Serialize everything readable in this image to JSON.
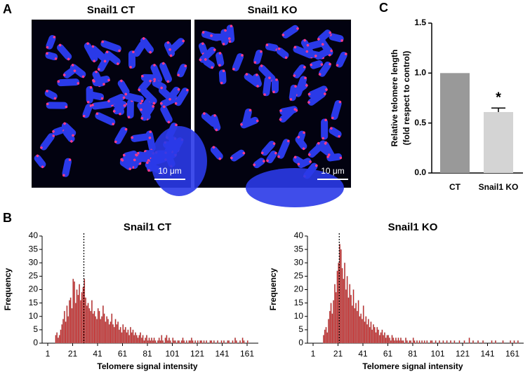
{
  "panel_labels": [
    "A",
    "B",
    "C"
  ],
  "images": [
    {
      "title": "Snail1 CT",
      "scale_bar": "10 μm"
    },
    {
      "title": "Snail1 KO",
      "scale_bar": "10 μm"
    }
  ],
  "chart_data": [
    {
      "type": "bar",
      "categories": [
        "CT",
        "Snail1 KO"
      ],
      "values": [
        1.0,
        0.61
      ],
      "errors": [
        null,
        0.04
      ],
      "colors": [
        "#999999",
        "#d4d4d4"
      ],
      "ylim": [
        0,
        1.5
      ],
      "yticks": [
        {
          "value": 0,
          "label": "0.0"
        },
        {
          "value": 0.5,
          "label": "0.5"
        },
        {
          "value": 1,
          "label": "1.0"
        },
        {
          "value": 1.5,
          "label": "1.5"
        }
      ],
      "ylabel": [
        "Relative telomere length",
        "(fold respect to control)"
      ],
      "annotation": "*"
    },
    {
      "type": "histogram",
      "title": "Snail1 CT",
      "xlabel": "Telomere signal intensity",
      "ylabel": "Frequency",
      "color": "#cc2020",
      "bins": [
        7,
        8,
        9,
        10,
        11,
        12,
        13,
        14,
        15,
        16,
        17,
        18,
        19,
        20,
        21,
        22,
        23,
        24,
        25,
        26,
        27,
        28,
        29,
        30,
        31,
        32,
        33,
        34,
        35,
        36,
        37,
        38,
        39,
        40,
        41,
        42,
        43,
        44,
        45,
        46,
        47,
        48,
        49,
        50,
        51,
        52,
        53,
        54,
        55,
        56,
        57,
        58,
        59,
        60,
        61,
        62,
        63,
        64,
        65,
        66,
        67,
        68,
        69,
        70,
        71,
        72,
        73,
        74,
        75,
        76,
        77,
        78,
        79,
        80,
        81,
        82,
        83,
        84,
        85,
        86,
        87,
        88,
        89,
        90,
        91,
        92,
        93,
        94,
        95,
        96,
        97,
        98,
        99,
        100,
        101,
        102,
        103,
        104,
        105,
        106,
        107,
        108,
        109,
        110,
        111,
        112,
        113,
        114,
        115,
        116,
        117,
        118,
        119,
        120,
        121,
        122,
        123,
        124,
        125,
        126,
        127,
        128,
        129,
        130,
        131,
        132,
        133,
        134,
        135,
        136,
        137,
        138,
        139,
        140,
        141,
        142,
        143,
        144,
        145,
        146,
        147,
        148,
        149,
        150,
        151,
        152,
        153,
        154,
        155,
        156,
        157,
        158,
        159,
        160,
        161,
        162,
        163,
        164,
        165,
        166,
        167
      ],
      "counts": [
        3,
        4,
        2,
        3,
        5,
        7,
        9,
        12,
        8,
        14,
        10,
        16,
        17,
        13,
        24,
        23,
        15,
        20,
        18,
        22,
        16,
        19,
        21,
        24,
        17,
        14,
        15,
        13,
        12,
        16,
        11,
        12,
        10,
        9,
        13,
        12,
        9,
        10,
        14,
        11,
        8,
        10,
        9,
        7,
        8,
        11,
        7,
        6,
        9,
        7,
        8,
        5,
        6,
        4,
        7,
        5,
        6,
        4,
        5,
        3,
        6,
        4,
        5,
        3,
        4,
        3,
        2,
        3,
        4,
        2,
        3,
        1,
        2,
        3,
        1,
        2,
        1,
        2,
        1,
        2,
        1,
        0,
        1,
        2,
        1,
        3,
        1,
        0,
        2,
        3,
        1,
        2,
        1,
        0,
        2,
        1,
        1,
        0,
        1,
        1,
        0,
        1,
        2,
        1,
        0,
        1,
        0,
        1,
        1,
        2,
        1,
        0,
        1,
        0,
        1,
        0,
        1,
        1,
        0,
        1,
        0,
        1,
        0,
        0,
        1,
        1,
        0,
        1,
        0,
        0,
        1,
        0,
        0,
        1,
        0,
        1,
        0,
        0,
        1,
        1,
        0,
        0,
        1,
        0,
        2,
        1,
        0,
        0,
        1,
        0,
        2,
        1,
        0,
        0,
        1,
        0,
        0,
        0,
        0,
        0
      ],
      "vline": 30,
      "xlim": [
        1,
        170
      ],
      "xticks": [
        1,
        21,
        41,
        61,
        81,
        101,
        121,
        141,
        161
      ],
      "ylim": [
        0,
        40
      ],
      "yticks": [
        0,
        5,
        10,
        15,
        20,
        25,
        30,
        35,
        40
      ]
    },
    {
      "type": "histogram",
      "title": "Snail1 KO",
      "xlabel": "Telomere signal intensity",
      "ylabel": "Frequency",
      "color": "#cc2020",
      "bins": [
        7,
        8,
        9,
        10,
        11,
        12,
        13,
        14,
        15,
        16,
        17,
        18,
        19,
        20,
        21,
        22,
        23,
        24,
        25,
        26,
        27,
        28,
        29,
        30,
        31,
        32,
        33,
        34,
        35,
        36,
        37,
        38,
        39,
        40,
        41,
        42,
        43,
        44,
        45,
        46,
        47,
        48,
        49,
        50,
        51,
        52,
        53,
        54,
        55,
        56,
        57,
        58,
        59,
        60,
        61,
        62,
        63,
        64,
        65,
        66,
        67,
        68,
        69,
        70,
        71,
        72,
        73,
        74,
        75,
        76,
        77,
        78,
        79,
        80,
        81,
        82,
        83,
        84,
        85,
        86,
        87,
        88,
        89,
        90,
        91,
        92,
        93,
        94,
        95,
        96,
        97,
        98,
        99,
        100,
        101,
        102,
        103,
        104,
        105,
        106,
        107,
        108,
        109,
        110,
        111,
        112,
        113,
        114,
        115,
        116,
        117,
        118,
        119,
        120,
        121,
        122,
        123,
        124,
        125,
        126,
        127,
        128,
        129,
        130,
        131,
        132,
        133,
        134,
        135,
        136,
        137,
        138,
        139,
        140,
        141,
        142,
        143,
        144,
        145,
        146,
        147,
        148,
        149,
        150,
        151,
        152,
        153,
        154,
        155,
        156,
        157,
        158,
        159,
        160,
        161,
        162,
        163,
        164,
        165,
        166,
        167
      ],
      "counts": [
        0,
        0,
        3,
        5,
        6,
        4,
        9,
        12,
        15,
        11,
        16,
        22,
        19,
        27,
        30,
        37,
        35,
        28,
        24,
        30,
        20,
        25,
        17,
        22,
        18,
        14,
        20,
        13,
        15,
        12,
        16,
        10,
        11,
        9,
        14,
        8,
        10,
        7,
        9,
        6,
        8,
        5,
        7,
        6,
        4,
        6,
        5,
        3,
        4,
        5,
        3,
        4,
        2,
        3,
        3,
        2,
        1,
        3,
        2,
        1,
        2,
        1,
        2,
        1,
        2,
        1,
        1,
        0,
        2,
        1,
        0,
        1,
        1,
        0,
        2,
        1,
        0,
        1,
        0,
        1,
        0,
        1,
        0,
        1,
        0,
        1,
        0,
        0,
        1,
        1,
        0,
        0,
        1,
        0,
        0,
        1,
        0,
        0,
        1,
        0,
        0,
        1,
        0,
        0,
        1,
        0,
        0,
        1,
        0,
        0,
        0,
        1,
        0,
        0,
        0,
        1,
        0,
        0,
        0,
        2,
        0,
        0,
        1,
        0,
        0,
        0,
        1,
        0,
        0,
        0,
        1,
        0,
        0,
        0,
        0,
        0,
        0,
        1,
        0,
        0,
        1,
        0,
        0,
        0,
        0,
        0,
        1,
        0,
        0,
        0,
        0,
        0,
        1,
        0,
        0,
        1,
        0,
        0,
        1,
        0
      ],
      "vline": 22,
      "xlim": [
        1,
        170
      ],
      "xticks": [
        1,
        21,
        41,
        61,
        81,
        101,
        121,
        141,
        161
      ],
      "ylim": [
        0,
        40
      ],
      "yticks": [
        0,
        5,
        10,
        15,
        20,
        25,
        30,
        35,
        40
      ]
    }
  ]
}
